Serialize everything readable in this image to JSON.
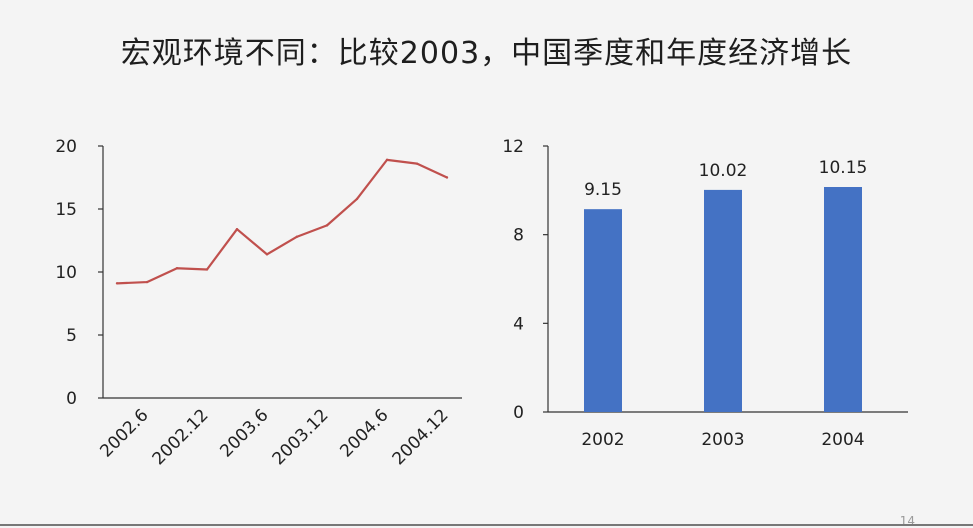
{
  "title": "宏观环境不同：比较2003，中国季度和年度经济增长",
  "page_number": "14",
  "colors": {
    "line": "#c0504d",
    "bar": "#4472c4",
    "axis": "#333333"
  },
  "chart_data": [
    {
      "type": "line",
      "x": [
        "2002.3",
        "2002.6",
        "2002.9",
        "2002.12",
        "2003.3",
        "2003.6",
        "2003.9",
        "2003.12",
        "2004.3",
        "2004.6",
        "2004.9",
        "2004.12"
      ],
      "x_tick_labels": [
        "2002.6",
        "2002.12",
        "2003.6",
        "2003.12",
        "2004.6",
        "2004.12"
      ],
      "series": [
        {
          "values": [
            9.1,
            9.2,
            10.3,
            10.2,
            13.4,
            11.4,
            12.8,
            13.7,
            15.8,
            18.9,
            18.6,
            17.5
          ]
        }
      ],
      "ylim": [
        0,
        20
      ],
      "y_ticks": [
        0,
        5,
        10,
        15,
        20
      ],
      "title": "",
      "xlabel": "",
      "ylabel": "",
      "grid": false
    },
    {
      "type": "bar",
      "categories": [
        "2002",
        "2003",
        "2004"
      ],
      "values": [
        9.15,
        10.02,
        10.15
      ],
      "data_labels": [
        "9.15",
        "10.02",
        "10.15"
      ],
      "ylim": [
        0,
        12
      ],
      "y_ticks": [
        0,
        4,
        8,
        12
      ],
      "title": "",
      "xlabel": "",
      "ylabel": "",
      "grid": false
    }
  ]
}
